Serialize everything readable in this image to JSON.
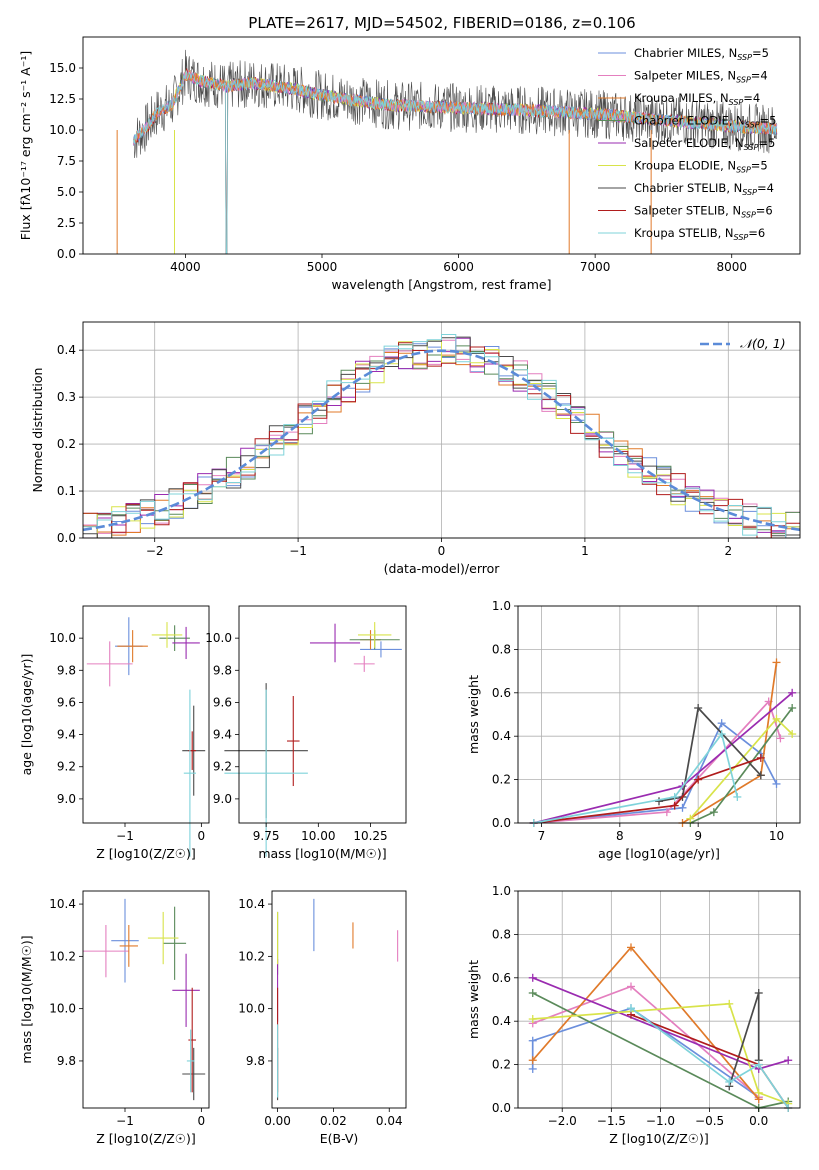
{
  "figure_title": "PLATE=2617, MJD=54502, FIBERID=0186, z=0.106",
  "palette": {
    "Chabrier MILES": "#6b8fdc",
    "Salpeter MILES": "#e47fbf",
    "Kroupa MILES": "#e07a2a",
    "Chabrier ELODIE": "#5a8a5a",
    "Salpeter ELODIE": "#9a2bb0",
    "Kroupa ELODIE": "#d8e34a",
    "Chabrier STELIB": "#4a4a4a",
    "Salpeter STELIB": "#b01c1c",
    "Kroupa STELIB": "#7fd3da"
  },
  "chart_data": [
    {
      "id": "spectrum",
      "type": "line",
      "title": "PLATE=2617, MJD=54502, FIBERID=0186, z=0.106",
      "xlabel": "wavelength [Angstrom, rest frame]",
      "ylabel": "Flux [fλ10⁻¹⁷ erg cm⁻² s⁻¹ A⁻¹]",
      "xlim": [
        3250,
        8500
      ],
      "ylim": [
        0,
        17.5
      ],
      "xticks": [
        "4000",
        "5000",
        "6000",
        "7000",
        "8000"
      ],
      "yticks": [
        "0.0",
        "2.5",
        "5.0",
        "7.5",
        "10.0",
        "12.5",
        "15.0"
      ],
      "legend_position": "top-right",
      "legend": [
        {
          "name": "Chabrier MILES",
          "sub": "N",
          "ssp": "SSP",
          "n": "=5"
        },
        {
          "name": "Salpeter MILES",
          "sub": "N",
          "ssp": "SSP",
          "n": "=4"
        },
        {
          "name": "Kroupa MILES",
          "sub": "N",
          "ssp": "SSP",
          "n": "=4"
        },
        {
          "name": "Chabrier ELODIE",
          "sub": "N",
          "ssp": "SSP",
          "n": "=5"
        },
        {
          "name": "Salpeter ELODIE",
          "sub": "N",
          "ssp": "SSP",
          "n": "=5"
        },
        {
          "name": "Kroupa ELODIE",
          "sub": "N",
          "ssp": "SSP",
          "n": "=5"
        },
        {
          "name": "Chabrier STELIB",
          "sub": "N",
          "ssp": "SSP",
          "n": "=4"
        },
        {
          "name": "Salpeter STELIB",
          "sub": "N",
          "ssp": "SSP",
          "n": "=6"
        },
        {
          "name": "Kroupa STELIB",
          "sub": "N",
          "ssp": "SSP",
          "n": "=6"
        }
      ],
      "continuum": [
        [
          3600,
          9.0
        ],
        [
          3700,
          10.0
        ],
        [
          3800,
          11.5
        ],
        [
          3900,
          12.0
        ],
        [
          4000,
          14.5
        ],
        [
          4100,
          14.0
        ],
        [
          4300,
          13.5
        ],
        [
          4500,
          13.8
        ],
        [
          4800,
          13.3
        ],
        [
          5000,
          12.8
        ],
        [
          5500,
          12.0
        ],
        [
          6000,
          11.8
        ],
        [
          6500,
          11.6
        ],
        [
          7000,
          11.3
        ],
        [
          7500,
          10.8
        ],
        [
          8000,
          10.3
        ],
        [
          8300,
          10.1
        ]
      ]
    },
    {
      "id": "residuals",
      "type": "histogram",
      "xlabel": "(data-model)/error",
      "ylabel": "Normed distribution",
      "xlim": [
        -2.5,
        2.5
      ],
      "ylim": [
        0,
        0.46
      ],
      "xticks": [
        "−2",
        "−1",
        "0",
        "1",
        "2"
      ],
      "yticks": [
        "0.0",
        "0.1",
        "0.2",
        "0.3",
        "0.4"
      ],
      "grid": true,
      "legend_position": "top-right",
      "legend": [
        "𝒩(0, 1)"
      ],
      "bin_width": 0.1
    },
    {
      "id": "age-vs-Z",
      "type": "scatter",
      "xlabel": "Z [log10(Z/Z☉)]",
      "ylabel": "age  [log10(age/yr)]",
      "xlim": [
        -1.55,
        0.1
      ],
      "ylim": [
        8.85,
        10.2
      ],
      "xticks": [
        "−1",
        "0"
      ],
      "yticks": [
        "9.0",
        "9.2",
        "9.4",
        "9.6",
        "9.8",
        "10.0"
      ],
      "points": [
        {
          "series": "Chabrier MILES",
          "x": -0.95,
          "y": 9.95,
          "xerr": 0.18,
          "yerr": 0.18
        },
        {
          "series": "Salpeter MILES",
          "x": -1.2,
          "y": 9.84,
          "xerr": 0.3,
          "yerr": 0.14
        },
        {
          "series": "Kroupa MILES",
          "x": -0.9,
          "y": 9.95,
          "xerr": 0.2,
          "yerr": 0.1
        },
        {
          "series": "Chabrier ELODIE",
          "x": -0.35,
          "y": 10.0,
          "xerr": 0.2,
          "yerr": 0.08
        },
        {
          "series": "Salpeter ELODIE",
          "x": -0.2,
          "y": 9.97,
          "xerr": 0.18,
          "yerr": 0.1
        },
        {
          "series": "Kroupa ELODIE",
          "x": -0.45,
          "y": 10.02,
          "xerr": 0.2,
          "yerr": 0.08
        },
        {
          "series": "Chabrier STELIB",
          "x": -0.1,
          "y": 9.3,
          "xerr": 0.15,
          "yerr": 0.28
        },
        {
          "series": "Salpeter STELIB",
          "x": -0.12,
          "y": 9.3,
          "xerr": 0.05,
          "yerr": 0.12
        },
        {
          "series": "Kroupa STELIB",
          "x": -0.15,
          "y": 9.16,
          "xerr": 0.08,
          "yerr": 0.52
        }
      ]
    },
    {
      "id": "age-vs-mass",
      "type": "scatter",
      "xlabel": "mass [log10(M/M☉)]",
      "ylabel": "",
      "xlim": [
        9.62,
        10.42
      ],
      "ylim": [
        8.85,
        10.2
      ],
      "xticks": [
        "9.75",
        "10.00",
        "10.25"
      ],
      "yticks": [
        "9.0",
        "9.2",
        "9.4",
        "9.6",
        "9.8",
        "10.0"
      ],
      "points": [
        {
          "series": "Chabrier MILES",
          "x": 10.3,
          "y": 9.93,
          "xerr": 0.1,
          "yerr": 0.05
        },
        {
          "series": "Salpeter MILES",
          "x": 10.22,
          "y": 9.84,
          "xerr": 0.05,
          "yerr": 0.05
        },
        {
          "series": "Kroupa MILES",
          "x": 10.25,
          "y": 9.99,
          "xerr": 0.05,
          "yerr": 0.06
        },
        {
          "series": "Chabrier ELODIE",
          "x": 10.27,
          "y": 9.99,
          "xerr": 0.12,
          "yerr": 0.06
        },
        {
          "series": "Salpeter ELODIE",
          "x": 10.08,
          "y": 9.97,
          "xerr": 0.12,
          "yerr": 0.12
        },
        {
          "series": "Kroupa ELODIE",
          "x": 10.27,
          "y": 10.02,
          "xerr": 0.08,
          "yerr": 0.08
        },
        {
          "series": "Chabrier STELIB",
          "x": 9.75,
          "y": 9.3,
          "xerr": 0.2,
          "yerr": 0.42
        },
        {
          "series": "Salpeter STELIB",
          "x": 9.88,
          "y": 9.36,
          "xerr": 0.03,
          "yerr": 0.28
        },
        {
          "series": "Kroupa STELIB",
          "x": 9.75,
          "y": 9.16,
          "xerr": 0.2,
          "yerr": 0.52
        }
      ]
    },
    {
      "id": "weight-vs-age",
      "type": "line",
      "xlabel": "age  [log10(age/yr)]",
      "ylabel": "mass weight",
      "xlim": [
        6.7,
        10.3
      ],
      "ylim": [
        0,
        1
      ],
      "xticks": [
        "7",
        "8",
        "9",
        "10"
      ],
      "yticks": [
        "0.0",
        "0.2",
        "0.4",
        "0.6",
        "0.8",
        "1.0"
      ],
      "grid": true,
      "series": [
        {
          "name": "Chabrier MILES",
          "x": [
            6.9,
            8.8,
            9.3,
            9.8,
            10.0
          ],
          "y": [
            0.0,
            0.07,
            0.46,
            0.32,
            0.18
          ]
        },
        {
          "name": "Salpeter MILES",
          "x": [
            6.9,
            8.6,
            9.9,
            10.05
          ],
          "y": [
            0.0,
            0.05,
            0.56,
            0.39
          ]
        },
        {
          "name": "Kroupa MILES",
          "x": [
            8.8,
            9.8,
            10.0
          ],
          "y": [
            0.0,
            0.22,
            0.74
          ]
        },
        {
          "name": "Chabrier ELODIE",
          "x": [
            8.9,
            9.2,
            10.2
          ],
          "y": [
            0.0,
            0.05,
            0.53
          ]
        },
        {
          "name": "Salpeter ELODIE",
          "x": [
            6.9,
            8.8,
            10.2
          ],
          "y": [
            0.0,
            0.17,
            0.6
          ]
        },
        {
          "name": "Kroupa ELODIE",
          "x": [
            8.9,
            10.0,
            10.2
          ],
          "y": [
            0.02,
            0.48,
            0.41
          ]
        },
        {
          "name": "Chabrier STELIB",
          "x": [
            8.5,
            8.8,
            9.0,
            9.8
          ],
          "y": [
            0.1,
            0.12,
            0.53,
            0.22
          ]
        },
        {
          "name": "Salpeter STELIB",
          "x": [
            6.9,
            8.7,
            9.0,
            9.8
          ],
          "y": [
            0.0,
            0.08,
            0.2,
            0.3
          ]
        },
        {
          "name": "Kroupa STELIB",
          "x": [
            6.9,
            8.7,
            9.3,
            9.5
          ],
          "y": [
            0.0,
            0.12,
            0.41,
            0.12
          ]
        }
      ]
    },
    {
      "id": "mass-vs-Z",
      "type": "scatter",
      "xlabel": "Z [log10(Z/Z☉)]",
      "ylabel": "mass [log10(M/M☉)]",
      "xlim": [
        -1.55,
        0.1
      ],
      "ylim": [
        9.62,
        10.45
      ],
      "xticks": [
        "−1",
        "0"
      ],
      "yticks": [
        "9.8",
        "10.0",
        "10.2",
        "10.4"
      ],
      "points": [
        {
          "series": "Chabrier MILES",
          "x": -1.0,
          "y": 10.26,
          "xerr": 0.18,
          "yerr": 0.16
        },
        {
          "series": "Salpeter MILES",
          "x": -1.25,
          "y": 10.22,
          "xerr": 0.3,
          "yerr": 0.1
        },
        {
          "series": "Kroupa MILES",
          "x": -0.95,
          "y": 10.24,
          "xerr": 0.12,
          "yerr": 0.08
        },
        {
          "series": "Chabrier ELODIE",
          "x": -0.35,
          "y": 10.25,
          "xerr": 0.15,
          "yerr": 0.14
        },
        {
          "series": "Salpeter ELODIE",
          "x": -0.2,
          "y": 10.07,
          "xerr": 0.18,
          "yerr": 0.14
        },
        {
          "series": "Kroupa ELODIE",
          "x": -0.5,
          "y": 10.27,
          "xerr": 0.2,
          "yerr": 0.1
        },
        {
          "series": "Chabrier STELIB",
          "x": -0.1,
          "y": 9.75,
          "xerr": 0.15,
          "yerr": 0.1
        },
        {
          "series": "Salpeter STELIB",
          "x": -0.12,
          "y": 9.88,
          "xerr": 0.05,
          "yerr": 0.2
        },
        {
          "series": "Kroupa STELIB",
          "x": -0.14,
          "y": 9.8,
          "xerr": 0.05,
          "yerr": 0.12
        }
      ]
    },
    {
      "id": "mass-vs-ebv",
      "type": "scatter",
      "xlabel": "E(B-V)",
      "ylabel": "",
      "xlim": [
        -0.002,
        0.046
      ],
      "ylim": [
        9.62,
        10.45
      ],
      "xticks": [
        "0.00",
        "0.02",
        "0.04"
      ],
      "yticks": [
        "9.8",
        "10.0",
        "10.2",
        "10.4"
      ],
      "points": [
        {
          "series": "Chabrier MILES",
          "x": 0.013,
          "y": 10.32,
          "xerr": 0,
          "yerr": 0.1
        },
        {
          "series": "Salpeter MILES",
          "x": 0.043,
          "y": 10.24,
          "xerr": 0,
          "yerr": 0.06
        },
        {
          "series": "Kroupa MILES",
          "x": 0.027,
          "y": 10.28,
          "xerr": 0,
          "yerr": 0.05
        },
        {
          "series": "Chabrier ELODIE",
          "x": 0.0,
          "y": 10.25,
          "xerr": 0,
          "yerr": 0.12
        },
        {
          "series": "Salpeter ELODIE",
          "x": 0.0,
          "y": 10.07,
          "xerr": 0,
          "yerr": 0.12
        },
        {
          "series": "Kroupa ELODIE",
          "x": 0.0,
          "y": 10.27,
          "xerr": 0,
          "yerr": 0.1
        },
        {
          "series": "Chabrier STELIB",
          "x": 0.0,
          "y": 9.75,
          "xerr": 0,
          "yerr": 0.1
        },
        {
          "series": "Salpeter STELIB",
          "x": 0.0,
          "y": 9.88,
          "xerr": 0,
          "yerr": 0.2
        },
        {
          "series": "Kroupa STELIB",
          "x": 0.0,
          "y": 9.8,
          "xerr": 0,
          "yerr": 0.14
        }
      ]
    },
    {
      "id": "weight-vs-Z",
      "type": "line",
      "xlabel": "Z [log10(Z/Z☉)]",
      "ylabel": "mass weight",
      "xlim": [
        -2.45,
        0.42
      ],
      "ylim": [
        0,
        1
      ],
      "xticks": [
        "−2.0",
        "−1.5",
        "−1.0",
        "−0.5",
        "0.0"
      ],
      "yticks": [
        "0.0",
        "0.2",
        "0.4",
        "0.6",
        "0.8",
        "1.0"
      ],
      "grid": true,
      "series": [
        {
          "name": "Chabrier MILES",
          "x": [
            -2.3,
            -2.3,
            -1.3,
            0.0
          ],
          "y": [
            0.18,
            0.31,
            0.46,
            0.05
          ]
        },
        {
          "name": "Salpeter MILES",
          "x": [
            -2.3,
            -1.3,
            0.0
          ],
          "y": [
            0.39,
            0.56,
            0.05
          ]
        },
        {
          "name": "Kroupa MILES",
          "x": [
            -2.3,
            -1.3,
            0.0
          ],
          "y": [
            0.22,
            0.74,
            0.04
          ]
        },
        {
          "name": "Chabrier ELODIE",
          "x": [
            -2.3,
            0.0,
            0.3
          ],
          "y": [
            0.53,
            0.0,
            0.03
          ]
        },
        {
          "name": "Salpeter ELODIE",
          "x": [
            -2.3,
            0.0,
            0.3
          ],
          "y": [
            0.6,
            0.18,
            0.22
          ]
        },
        {
          "name": "Kroupa ELODIE",
          "x": [
            -2.3,
            -0.3,
            0.0,
            0.3
          ],
          "y": [
            0.41,
            0.48,
            0.07,
            0.02
          ]
        },
        {
          "name": "Chabrier STELIB",
          "x": [
            -0.3,
            0.0,
            0.0
          ],
          "y": [
            0.1,
            0.53,
            0.22
          ]
        },
        {
          "name": "Salpeter STELIB",
          "x": [
            -1.3,
            0.0,
            0.3
          ],
          "y": [
            0.43,
            0.2,
            0.0
          ]
        },
        {
          "name": "Kroupa STELIB",
          "x": [
            -1.3,
            -0.3,
            0.0,
            0.3
          ],
          "y": [
            0.46,
            0.12,
            0.2,
            0.0
          ]
        }
      ]
    }
  ]
}
